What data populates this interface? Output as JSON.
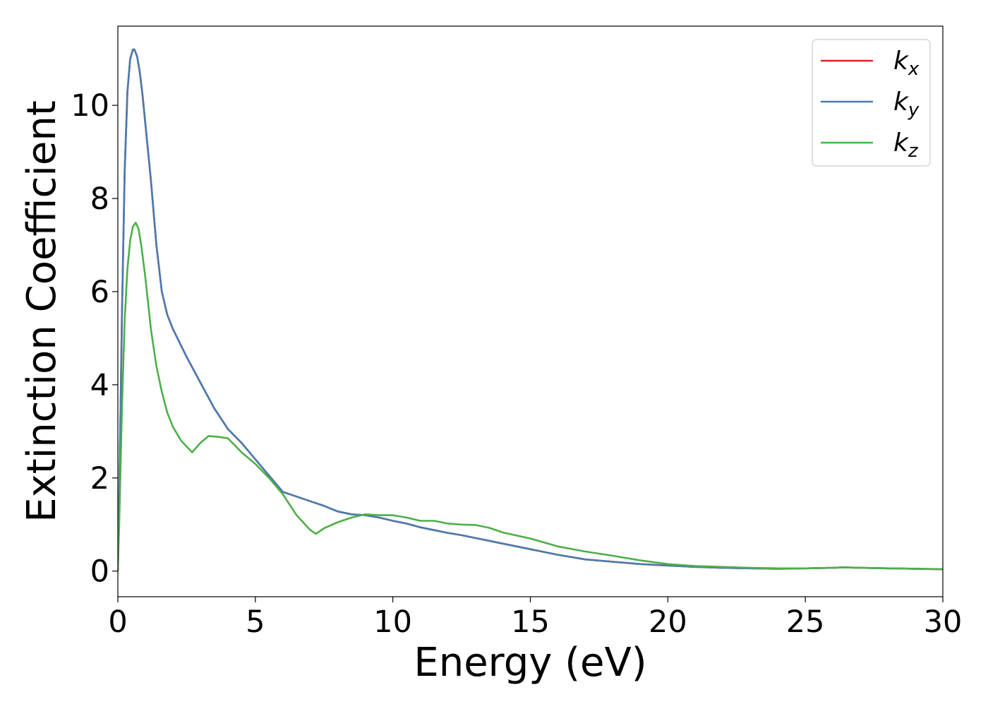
{
  "chart_data": {
    "type": "line",
    "xlabel": "Energy (eV)",
    "ylabel": "Extinction Coefficient",
    "xlim": [
      0,
      30
    ],
    "ylim": [
      -0.55,
      11.7
    ],
    "xticks": [
      0,
      5,
      10,
      15,
      20,
      25,
      30
    ],
    "yticks": [
      0,
      2,
      4,
      6,
      8,
      10
    ],
    "grid": false,
    "legend_position": "top-right",
    "series": [
      {
        "name": "k",
        "subscript": "x",
        "color": "#d62728",
        "x": [
          0,
          0.05,
          0.15,
          0.25,
          0.35,
          0.45,
          0.55,
          0.6,
          0.7,
          0.8,
          0.9,
          1.0,
          1.2,
          1.4,
          1.6,
          1.8,
          2.0,
          2.5,
          3.0,
          3.5,
          4.0,
          4.5,
          5.0,
          5.5,
          6.0,
          6.5,
          7.0,
          7.5,
          8.0,
          8.5,
          9.0,
          9.5,
          10.0,
          10.5,
          11.0,
          11.5,
          12.0,
          12.5,
          13.0,
          13.5,
          14.0,
          15.0,
          16.0,
          17.0,
          18.0,
          19.0,
          20.0,
          21.0,
          22.0,
          23.0,
          24.0,
          25.0,
          26.0,
          26.4,
          27.0,
          28.0,
          29.0,
          30.0
        ],
        "values": [
          0.0,
          1.5,
          5.5,
          8.6,
          10.3,
          11.0,
          11.2,
          11.2,
          11.05,
          10.7,
          10.2,
          9.6,
          8.4,
          7.0,
          6.0,
          5.5,
          5.2,
          4.6,
          4.05,
          3.5,
          3.05,
          2.75,
          2.4,
          2.05,
          1.7,
          1.6,
          1.5,
          1.4,
          1.28,
          1.22,
          1.2,
          1.15,
          1.08,
          1.02,
          0.94,
          0.88,
          0.82,
          0.77,
          0.71,
          0.65,
          0.59,
          0.47,
          0.35,
          0.25,
          0.2,
          0.15,
          0.12,
          0.09,
          0.07,
          0.06,
          0.05,
          0.06,
          0.07,
          0.08,
          0.07,
          0.06,
          0.05,
          0.04
        ]
      },
      {
        "name": "k",
        "subscript": "y",
        "color": "#4a7bb0",
        "x": [
          0,
          0.05,
          0.15,
          0.25,
          0.35,
          0.45,
          0.55,
          0.6,
          0.7,
          0.8,
          0.9,
          1.0,
          1.2,
          1.4,
          1.6,
          1.8,
          2.0,
          2.5,
          3.0,
          3.5,
          4.0,
          4.5,
          5.0,
          5.5,
          6.0,
          6.5,
          7.0,
          7.5,
          8.0,
          8.5,
          9.0,
          9.5,
          10.0,
          10.5,
          11.0,
          11.5,
          12.0,
          12.5,
          13.0,
          13.5,
          14.0,
          15.0,
          16.0,
          17.0,
          18.0,
          19.0,
          20.0,
          21.0,
          22.0,
          23.0,
          24.0,
          25.0,
          26.0,
          26.4,
          27.0,
          28.0,
          29.0,
          30.0
        ],
        "values": [
          0.0,
          1.5,
          5.5,
          8.6,
          10.3,
          11.0,
          11.2,
          11.2,
          11.05,
          10.7,
          10.2,
          9.6,
          8.4,
          7.0,
          6.0,
          5.5,
          5.2,
          4.6,
          4.05,
          3.5,
          3.05,
          2.75,
          2.4,
          2.05,
          1.7,
          1.6,
          1.5,
          1.4,
          1.28,
          1.22,
          1.2,
          1.15,
          1.08,
          1.02,
          0.94,
          0.88,
          0.82,
          0.77,
          0.71,
          0.65,
          0.59,
          0.47,
          0.35,
          0.25,
          0.2,
          0.15,
          0.12,
          0.09,
          0.07,
          0.06,
          0.05,
          0.06,
          0.07,
          0.08,
          0.07,
          0.06,
          0.05,
          0.04
        ]
      },
      {
        "name": "k",
        "subscript": "z",
        "color": "#4daf4a",
        "x": [
          0,
          0.05,
          0.15,
          0.25,
          0.35,
          0.45,
          0.55,
          0.65,
          0.75,
          0.85,
          1.0,
          1.2,
          1.4,
          1.6,
          1.8,
          2.0,
          2.3,
          2.7,
          3.0,
          3.3,
          3.7,
          4.0,
          4.5,
          5.0,
          5.5,
          6.0,
          6.5,
          7.0,
          7.2,
          7.5,
          8.0,
          8.5,
          9.0,
          9.5,
          10.0,
          10.5,
          11.0,
          11.5,
          12.0,
          12.5,
          13.0,
          13.5,
          14.0,
          15.0,
          16.0,
          17.0,
          18.0,
          19.0,
          20.0,
          21.0,
          22.0,
          23.0,
          24.0,
          25.0,
          26.0,
          26.4,
          27.0,
          28.0,
          29.0,
          30.0
        ],
        "values": [
          0.0,
          1.0,
          3.5,
          5.4,
          6.5,
          7.1,
          7.4,
          7.48,
          7.35,
          7.0,
          6.3,
          5.2,
          4.4,
          3.85,
          3.4,
          3.1,
          2.8,
          2.55,
          2.75,
          2.9,
          2.88,
          2.85,
          2.55,
          2.3,
          2.0,
          1.65,
          1.2,
          0.88,
          0.8,
          0.92,
          1.05,
          1.15,
          1.22,
          1.2,
          1.2,
          1.15,
          1.08,
          1.08,
          1.02,
          1.0,
          0.99,
          0.93,
          0.83,
          0.7,
          0.53,
          0.42,
          0.33,
          0.23,
          0.15,
          0.11,
          0.09,
          0.07,
          0.06,
          0.06,
          0.07,
          0.08,
          0.07,
          0.06,
          0.05,
          0.04
        ]
      }
    ]
  }
}
